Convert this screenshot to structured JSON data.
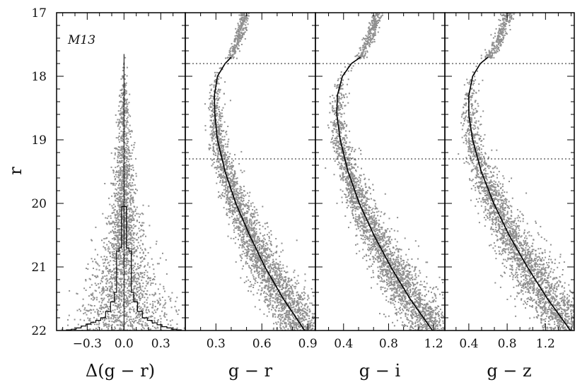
{
  "chart_data": {
    "type": "scatter",
    "cluster_label": "M13",
    "y_axis": {
      "label": "r",
      "range": [
        22,
        17
      ],
      "ticks": [
        "17",
        "18",
        "19",
        "20",
        "21",
        "22"
      ]
    },
    "reference_lines_r": [
      17.8,
      19.3
    ],
    "panels": [
      {
        "xlabel": "Δ(g − r)",
        "xlim": [
          -0.55,
          0.5
        ],
        "xticks": [
          -0.3,
          0.0,
          0.3
        ],
        "xtick_labels": [
          "−0.3",
          "0.0",
          "0.3"
        ],
        "kind": "residual",
        "spread_model": {
          "r": [
            17.7,
            18.5,
            19.5,
            20.5,
            21.0,
            21.5,
            22.0
          ],
          "sigma": [
            0.006,
            0.02,
            0.04,
            0.075,
            0.12,
            0.17,
            0.22
          ]
        },
        "histogram": {
          "bin_width": 0.02,
          "centers": [
            -0.45,
            -0.41,
            -0.37,
            -0.33,
            -0.29,
            -0.25,
            -0.21,
            -0.17,
            -0.13,
            -0.09,
            -0.07,
            -0.05,
            -0.03,
            -0.01,
            0.01,
            0.03,
            0.05,
            0.07,
            0.09,
            0.13,
            0.17,
            0.21,
            0.25,
            0.29,
            0.33,
            0.37,
            0.41,
            0.45
          ],
          "counts_r_height": [
            0.01,
            0.02,
            0.04,
            0.07,
            0.1,
            0.13,
            0.16,
            0.2,
            0.3,
            0.45,
            0.6,
            1.25,
            1.3,
            1.95,
            1.95,
            1.3,
            1.25,
            0.6,
            0.45,
            0.3,
            0.2,
            0.16,
            0.12,
            0.09,
            0.06,
            0.04,
            0.02,
            0.01
          ]
        }
      },
      {
        "xlabel": "g − r",
        "xlim": [
          0.1,
          0.95
        ],
        "xticks": [
          0.3,
          0.6,
          0.9
        ],
        "xtick_labels": [
          "0.3",
          "0.6",
          "0.9"
        ],
        "kind": "cmd",
        "ridge": {
          "r": [
            17.7,
            17.8,
            18.0,
            18.3,
            18.6,
            19.0,
            19.5,
            20.0,
            20.5,
            21.0,
            21.5,
            22.0
          ],
          "color": [
            0.4,
            0.36,
            0.31,
            0.29,
            0.293,
            0.31,
            0.36,
            0.43,
            0.52,
            0.62,
            0.74,
            0.88
          ]
        },
        "giant_branch": {
          "r": [
            17.0,
            17.2,
            17.4,
            17.6,
            17.7
          ],
          "color": [
            0.49,
            0.47,
            0.45,
            0.42,
            0.4
          ]
        },
        "spread": 0.05
      },
      {
        "xlabel": "g − i",
        "xlim": [
          0.15,
          1.3
        ],
        "xticks": [
          0.4,
          0.8,
          1.2
        ],
        "xtick_labels": [
          "0.4",
          "0.8",
          "1.2"
        ],
        "kind": "cmd",
        "ridge": {
          "r": [
            17.7,
            17.8,
            18.0,
            18.3,
            18.6,
            19.0,
            19.5,
            20.0,
            20.5,
            21.0,
            21.5,
            22.0
          ],
          "color": [
            0.55,
            0.47,
            0.39,
            0.345,
            0.34,
            0.37,
            0.44,
            0.54,
            0.67,
            0.82,
            0.99,
            1.19
          ]
        },
        "giant_branch": {
          "r": [
            17.0,
            17.2,
            17.4,
            17.6,
            17.7
          ],
          "color": [
            0.7,
            0.67,
            0.63,
            0.58,
            0.55
          ]
        },
        "spread": 0.07
      },
      {
        "xlabel": "g − z",
        "xlim": [
          0.15,
          1.5
        ],
        "xticks": [
          0.4,
          0.8,
          1.2
        ],
        "xtick_labels": [
          "0.4",
          "0.8",
          "1.2"
        ],
        "kind": "cmd",
        "ridge": {
          "r": [
            17.7,
            17.8,
            18.0,
            18.3,
            18.6,
            19.0,
            19.5,
            20.0,
            20.5,
            21.0,
            21.5,
            22.0
          ],
          "color": [
            0.6,
            0.52,
            0.44,
            0.4,
            0.4,
            0.44,
            0.53,
            0.66,
            0.82,
            1.01,
            1.22,
            1.46
          ]
        },
        "giant_branch": {
          "r": [
            17.0,
            17.2,
            17.4,
            17.6,
            17.7
          ],
          "color": [
            0.82,
            0.77,
            0.72,
            0.66,
            0.6
          ]
        },
        "spread": 0.09
      }
    ],
    "colors": {
      "points": "#8f8f8f",
      "lines": "#000000",
      "reference_lines": "#222222"
    }
  }
}
